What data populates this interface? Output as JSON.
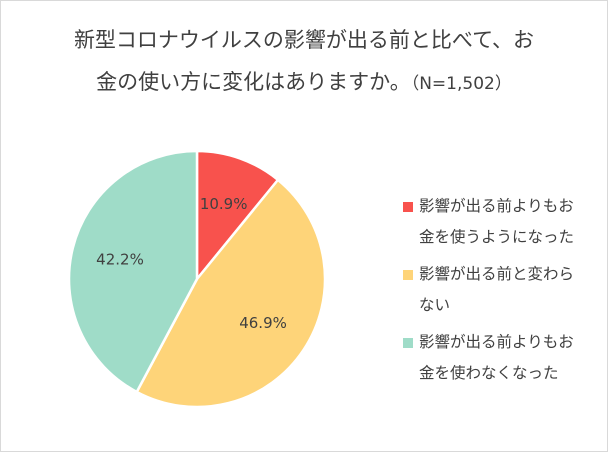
{
  "title": {
    "line1": "新型コロナウイルスの影響が出る前と比べて、お",
    "line2": "金の使い方に変化はありますか。",
    "note": "（N=1,502）"
  },
  "chart_data": {
    "type": "pie",
    "title": "新型コロナウイルスの影響が出る前と比べて、お金の使い方に変化はありますか。（N=1,502）",
    "legend_position": "right",
    "slices": [
      {
        "label": "影響が出る前よりもお金を使うようになった",
        "value": 10.9,
        "display": "10.9%",
        "color": "#f8524d"
      },
      {
        "label": "影響が出る前と変わらない",
        "value": 46.9,
        "display": "46.9%",
        "color": "#fed479"
      },
      {
        "label": "影響が出る前よりもお金を使わなくなった",
        "value": 42.2,
        "display": "42.2%",
        "color": "#9fdcc8"
      }
    ],
    "legend": [
      {
        "line1": "影響が出る前よりもお",
        "line2": "金を使うようになった"
      },
      {
        "line1": "影響が出る前と変わら",
        "line2": "ない"
      },
      {
        "line1": "影響が出る前よりもお",
        "line2": "金を使わなくなった"
      }
    ]
  }
}
